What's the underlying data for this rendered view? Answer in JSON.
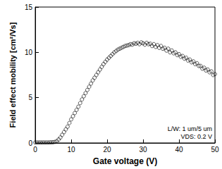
{
  "chart_data": {
    "type": "scatter",
    "x_label": "Gate voltage (V)",
    "y_label": "Field effect mobility [cm²/Vs]",
    "annotations": [
      "L/W: 1 um/5 um",
      "VDS: 0.2 V"
    ],
    "x": [
      0,
      0.5,
      1,
      1.5,
      2,
      2.5,
      3,
      3.5,
      4,
      4.5,
      5,
      5.5,
      6,
      6.5,
      7,
      7.5,
      8,
      8.5,
      9,
      9.5,
      10,
      10.5,
      11,
      11.5,
      12,
      12.5,
      13,
      13.5,
      14,
      14.5,
      15,
      15.5,
      16,
      16.5,
      17,
      17.5,
      18,
      18.5,
      19,
      19.5,
      20,
      20.5,
      21,
      21.5,
      22,
      22.5,
      23,
      23.5,
      24,
      24.5,
      25,
      25.5,
      26,
      26.5,
      27,
      27.5,
      28,
      28.5,
      29,
      29.5,
      30,
      30.5,
      31,
      31.5,
      32,
      32.5,
      33,
      33.5,
      34,
      34.5,
      35,
      35.5,
      36,
      36.5,
      37,
      37.5,
      38,
      38.5,
      39,
      39.5,
      40,
      40.5,
      41,
      41.5,
      42,
      42.5,
      43,
      43.5,
      44,
      44.5,
      45,
      45.5,
      46,
      46.5,
      47,
      47.5,
      48,
      48.5,
      49,
      49.5,
      50
    ],
    "values": [
      0.05,
      0.05,
      0.05,
      0.05,
      0.05,
      0.05,
      0.05,
      0.05,
      0.06,
      0.07,
      0.08,
      0.12,
      0.2,
      0.38,
      0.6,
      0.9,
      1.2,
      1.5,
      1.8,
      2.2,
      2.6,
      2.95,
      3.3,
      3.65,
      4.0,
      4.4,
      4.8,
      5.15,
      5.5,
      5.85,
      6.2,
      6.55,
      6.9,
      7.2,
      7.5,
      7.8,
      8.1,
      8.4,
      8.7,
      8.95,
      9.2,
      9.4,
      9.6,
      9.8,
      10.0,
      10.15,
      10.3,
      10.4,
      10.5,
      10.6,
      10.7,
      10.75,
      10.8,
      10.9,
      10.85,
      11.0,
      10.95,
      11.05,
      10.9,
      11.1,
      11.0,
      10.85,
      11.05,
      10.9,
      10.95,
      10.7,
      10.9,
      10.6,
      10.8,
      10.5,
      10.7,
      10.4,
      10.5,
      10.2,
      10.4,
      10.0,
      10.2,
      9.9,
      10.0,
      9.7,
      9.8,
      9.5,
      9.6,
      9.3,
      9.4,
      9.1,
      9.2,
      8.9,
      9.0,
      8.7,
      8.8,
      8.5,
      8.5,
      8.2,
      8.3,
      8.0,
      8.1,
      7.8,
      7.9,
      7.5,
      7.6
    ],
    "color": "#000000",
    "marker": "open_circle",
    "xlim": [
      0,
      50
    ],
    "xticks": [
      0,
      10,
      20,
      30,
      40,
      50
    ],
    "ylim": [
      0,
      15
    ],
    "yticks": [
      0,
      5,
      10,
      15
    ],
    "grid": false
  }
}
